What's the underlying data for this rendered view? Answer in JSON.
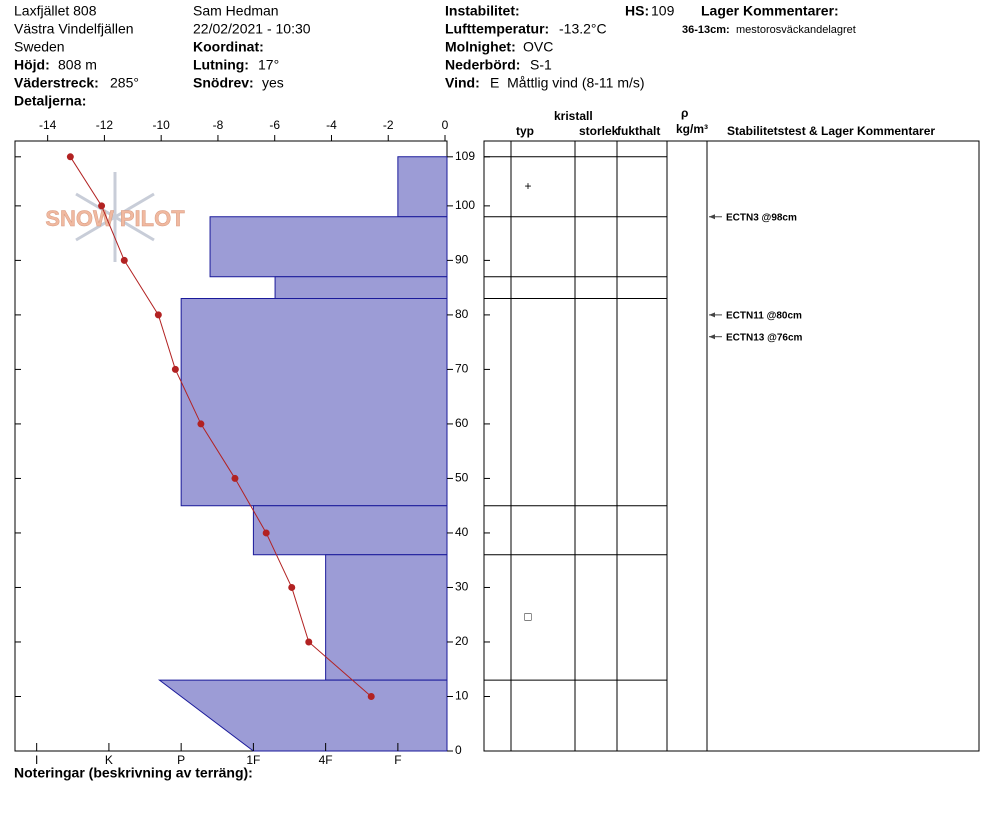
{
  "header": {
    "location": "Laxfjället 808",
    "range": "Västra Vindelfjällen",
    "country": "Sweden",
    "elevation_label": "Höjd:",
    "elevation": "808 m",
    "aspect_label": "Väderstreck:",
    "aspect": "285°",
    "details_label": "Detaljerna:",
    "observer": "Sam Hedman",
    "datetime": "22/02/2021 - 10:30",
    "coordinate_label": "Koordinat:",
    "slope_label": "Lutning:",
    "slope": "17°",
    "drift_label": "Snödrev:",
    "drift": "yes",
    "instability_label": "Instabilitet:",
    "air_temp_label": "Lufttemperatur:",
    "air_temp": "-13.2°C",
    "sky_label": "Molnighet:",
    "sky": "OVC",
    "precip_label": "Nederbörd:",
    "precip": "S-1",
    "wind_label": "Vind:",
    "wind": "E  Måttlig vind (8-11 m/s)",
    "hs_label": "HS:",
    "hs": "109",
    "layer_comments_label": "Lager Kommentarer:",
    "layer_comment_range": "36-13cm:",
    "layer_comment": "mestorosväckandelagret"
  },
  "columns": {
    "type": "typ",
    "crystal": "kristall",
    "size": "storlek",
    "moisture": "fukthalt",
    "rho": "ρ",
    "density_unit": "kg/m³",
    "comments": "Stabilitetstest & Lager Kommentarer"
  },
  "logo": "SNOW PILOT",
  "notes_label": "Noteringar (beskrivning av terräng):",
  "chart_data": {
    "type": "profile",
    "ylim": [
      0,
      111.9
    ],
    "yticks": [
      0,
      10,
      20,
      30,
      40,
      50,
      60,
      70,
      80,
      90,
      100,
      109
    ],
    "temperature": {
      "xlim": [
        -15.15,
        0.07
      ],
      "xticks": [
        -14,
        -12,
        -10,
        -8,
        -6,
        -4,
        -2,
        0
      ],
      "color": "#b22222",
      "depths": [
        109,
        100,
        90,
        80,
        70,
        60,
        50,
        40,
        30,
        20,
        10
      ],
      "values": [
        -13.2,
        -12.1,
        -11.3,
        -10.1,
        -9.5,
        -8.6,
        -7.4,
        -6.3,
        -5.4,
        -4.8,
        -2.6
      ]
    },
    "hardness": {
      "xlim": [
        6.3,
        0.32
      ],
      "xticks": [
        {
          "value": 6,
          "label": "I"
        },
        {
          "value": 5,
          "label": "K"
        },
        {
          "value": 4,
          "label": "P"
        },
        {
          "value": 3,
          "label": "1F"
        },
        {
          "value": 2,
          "label": "4F"
        },
        {
          "value": 1,
          "label": "F"
        }
      ],
      "color": "#9c9cd6",
      "edge_color": "#1a1a9a",
      "layers": [
        {
          "top": 109,
          "bottom": 98,
          "values": [
            1,
            1
          ],
          "grain": "+"
        },
        {
          "top": 98,
          "bottom": 87,
          "values": [
            3.6,
            3.6
          ]
        },
        {
          "top": 87,
          "bottom": 83,
          "values": [
            2.7,
            2.7
          ]
        },
        {
          "top": 83,
          "bottom": 45,
          "values": [
            4,
            4
          ]
        },
        {
          "top": 45,
          "bottom": 36,
          "values": [
            3,
            3
          ]
        },
        {
          "top": 36,
          "bottom": 13,
          "values": [
            2,
            2
          ],
          "grain": "□"
        },
        {
          "top": 13,
          "bottom": 0,
          "values": [
            4.3,
            3
          ]
        }
      ]
    },
    "tests": [
      {
        "label": "ECTN3 @98cm",
        "depth": 98
      },
      {
        "label": "ECTN11 @80cm",
        "depth": 80
      },
      {
        "label": "ECTN13 @76cm",
        "depth": 76
      }
    ]
  }
}
